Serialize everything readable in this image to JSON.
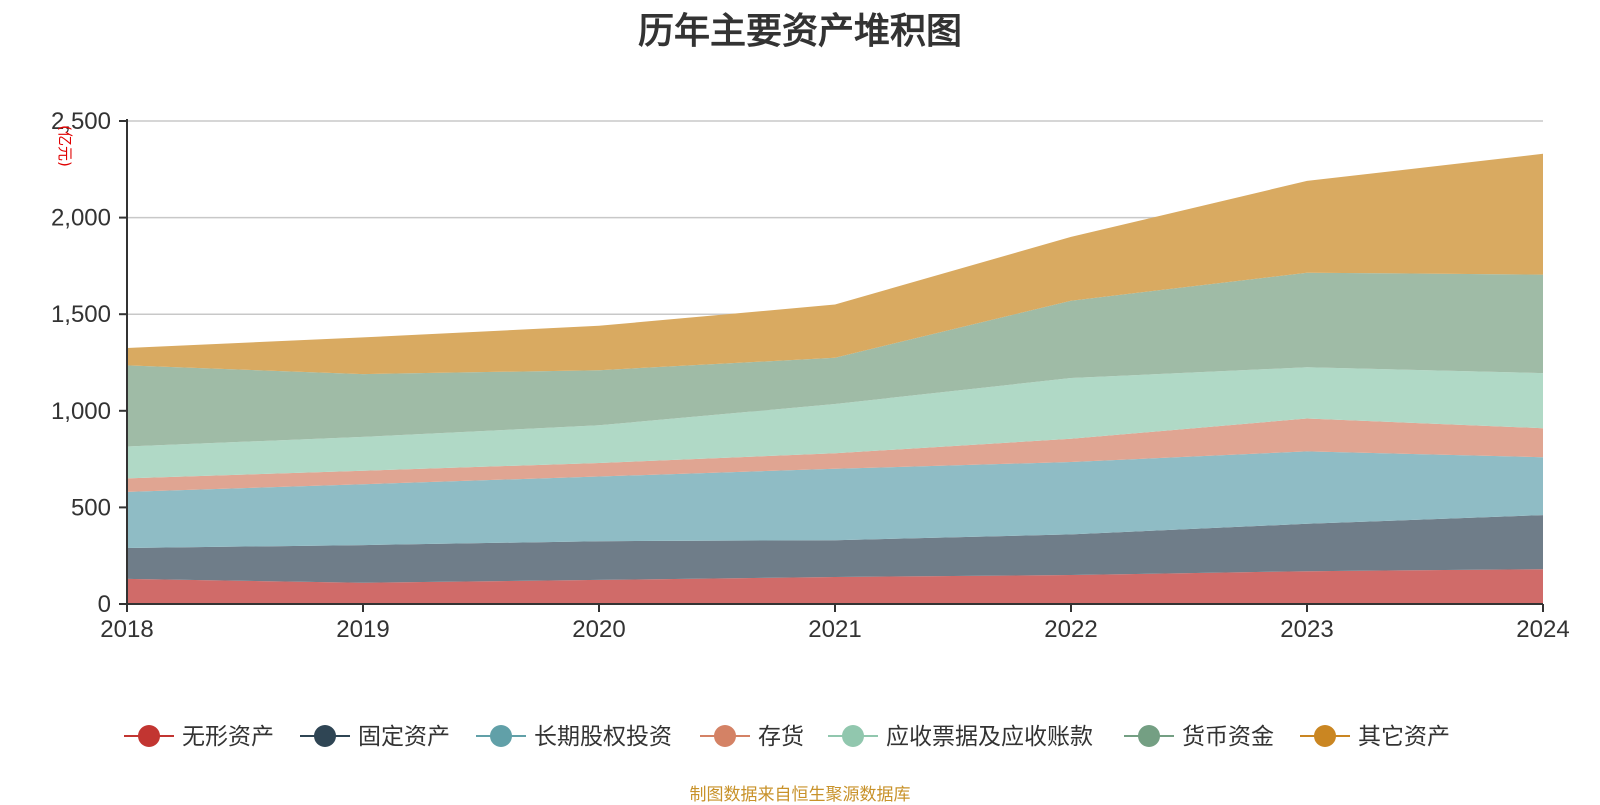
{
  "chart_data": {
    "type": "area",
    "stacked": true,
    "title": "历年主要资产堆积图",
    "unit_label": "(亿元)",
    "x": [
      "2018",
      "2019",
      "2020",
      "2021",
      "2022",
      "2023",
      "2024"
    ],
    "ylim": [
      0,
      2500
    ],
    "yticks": [
      "0",
      "500",
      "1,000",
      "1,500",
      "2,000",
      "2,500"
    ],
    "ytick_values": [
      0,
      500,
      1000,
      1500,
      2000,
      2500
    ],
    "grid": true,
    "legend_position": "bottom",
    "series": [
      {
        "name": "无形资产",
        "values": [
          130,
          110,
          125,
          140,
          150,
          170,
          180
        ],
        "color": "#d06b69",
        "legend_color": "#c23531"
      },
      {
        "name": "固定资产",
        "values": [
          160,
          195,
          200,
          190,
          210,
          245,
          280
        ],
        "color": "#6f7d89",
        "legend_color": "#2f4554"
      },
      {
        "name": "长期股权投资",
        "values": [
          290,
          315,
          335,
          370,
          375,
          375,
          300
        ],
        "color": "#8fbcc5",
        "legend_color": "#61a0a8"
      },
      {
        "name": "存货",
        "values": [
          70,
          70,
          70,
          80,
          120,
          170,
          150
        ],
        "color": "#e0a592",
        "legend_color": "#d48265"
      },
      {
        "name": "应收票据及应收账款",
        "values": [
          165,
          175,
          195,
          255,
          315,
          265,
          285
        ],
        "color": "#b0d9c6",
        "legend_color": "#91c7ae"
      },
      {
        "name": "货币资金",
        "values": [
          420,
          325,
          285,
          240,
          400,
          490,
          510
        ],
        "color": "#9fbba6",
        "legend_color": "#749f83"
      },
      {
        "name": "其它资产",
        "values": [
          90,
          190,
          230,
          275,
          330,
          475,
          625
        ],
        "color": "#d9aa61",
        "legend_color": "#ca8622"
      }
    ]
  },
  "source_note": "制图数据来自恒生聚源数据库"
}
